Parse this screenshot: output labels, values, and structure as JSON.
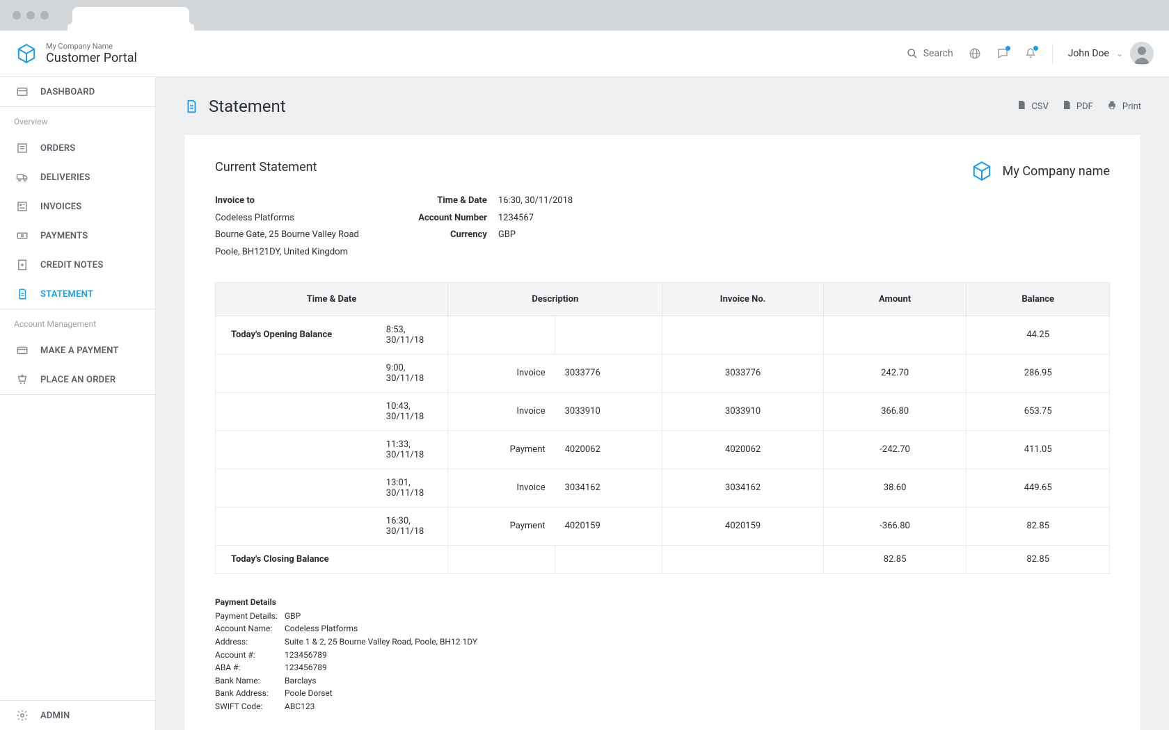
{
  "colors": {
    "accent": "#1a9df0",
    "chrome": "#d3d6d9",
    "chromeDot": "#b0b4b8",
    "bg": "#edeff1",
    "border": "#e3e5e8",
    "textMuted": "#9aa0a6",
    "text": "#2b2e33"
  },
  "header": {
    "companySub": "My Company Name",
    "portalTitle": "Customer Portal",
    "searchLabel": "Search",
    "userName": "John Doe"
  },
  "sidebar": {
    "dashboard": "DASHBOARD",
    "overviewLabel": "Overview",
    "orders": "ORDERS",
    "deliveries": "DELIVERIES",
    "invoices": "INVOICES",
    "payments": "PAYMENTS",
    "creditNotes": "CREDIT NOTES",
    "statement": "STATEMENT",
    "acctMgmtLabel": "Account Management",
    "makePayment": "MAKE A PAYMENT",
    "placeOrder": "PLACE AN ORDER",
    "admin": "ADMIN"
  },
  "page": {
    "title": "Statement",
    "exportCsv": "CSV",
    "exportPdf": "PDF",
    "exportPrint": "Print"
  },
  "statement": {
    "heading": "Current Statement",
    "invoiceToLabel": "Invoice to",
    "invoiceToLine1": "Codeless Platforms",
    "invoiceToLine2": "Bourne Gate, 25 Bourne Valley Road",
    "invoiceToLine3": "Poole, BH121DY, United Kingdom",
    "timeDateLabel": "Time & Date",
    "timeDateValue": "16:30, 30/11/2018",
    "accountNumberLabel": "Account Number",
    "accountNumberValue": "1234567",
    "currencyLabel": "Currency",
    "currencyValue": "GBP",
    "companyBrand": "My Company name"
  },
  "table": {
    "columns": [
      "Time & Date",
      "Description",
      "Invoice No.",
      "Amount",
      "Balance"
    ],
    "openingLabel": "Today's Opening Balance",
    "openingTime": "8:53, 30/11/18",
    "openingBalance": "44.25",
    "rows": [
      {
        "time": "9:00, 30/11/18",
        "descType": "Invoice",
        "descNo": "3033776",
        "invoice": "3033776",
        "amount": "242.70",
        "balance": "286.95"
      },
      {
        "time": "10:43, 30/11/18",
        "descType": "Invoice",
        "descNo": "3033910",
        "invoice": "3033910",
        "amount": "366.80",
        "balance": "653.75"
      },
      {
        "time": "11:33, 30/11/18",
        "descType": "Payment",
        "descNo": "4020062",
        "invoice": "4020062",
        "amount": "-242.70",
        "balance": "411.05"
      },
      {
        "time": "13:01, 30/11/18",
        "descType": "Invoice",
        "descNo": "3034162",
        "invoice": "3034162",
        "amount": "38.60",
        "balance": "449.65"
      },
      {
        "time": "16:30, 30/11/18",
        "descType": "Payment",
        "descNo": "4020159",
        "invoice": "4020159",
        "amount": "-366.80",
        "balance": "82.85"
      }
    ],
    "closingLabel": "Today's Closing Balance",
    "closingAmount": "82.85",
    "closingBalance": "82.85"
  },
  "paymentDetails": {
    "title": "Payment Details",
    "items": [
      {
        "k": "Payment Details:",
        "v": "GBP"
      },
      {
        "k": "Account Name:",
        "v": "Codeless Platforms"
      },
      {
        "k": "Address:",
        "v": "Suite 1 & 2, 25 Bourne Valley Road, Poole, BH12 1DY"
      },
      {
        "k": "Account #:",
        "v": "123456789"
      },
      {
        "k": "ABA #:",
        "v": "123456789"
      },
      {
        "k": "Bank Name:",
        "v": "Barclays"
      },
      {
        "k": "Bank Address:",
        "v": "Poole Dorset"
      },
      {
        "k": "SWIFT Code:",
        "v": "ABC123"
      }
    ]
  }
}
